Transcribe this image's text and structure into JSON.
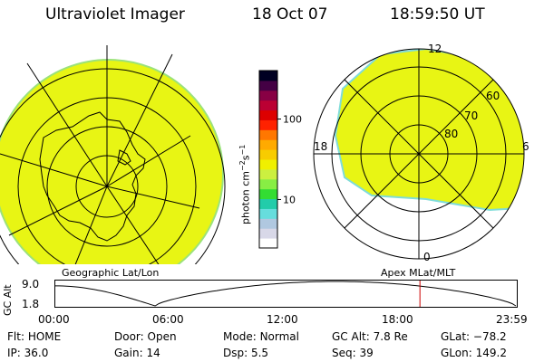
{
  "header": {
    "title": "Ultraviolet Imager",
    "date": "18 Oct 07",
    "time": "18:59:50 UT"
  },
  "colors": {
    "fill": "#e8f514",
    "fill_edge": "#9be27a",
    "gc_marker": "#cc0000"
  },
  "left_panel": {
    "label": "Geographic Lat/Lon"
  },
  "right_panel": {
    "label": "Apex MLat/MLT",
    "mlt_labels": {
      "top": "12",
      "left": "18",
      "right": "6",
      "bottom": "0"
    },
    "lat_labels": [
      "60",
      "70",
      "80"
    ]
  },
  "colorbar": {
    "unit": "photon cm",
    "unit_sup1": "−2",
    "unit_mid": "s",
    "unit_sup2": "−1",
    "ticks": [
      {
        "value": 100,
        "label": "100"
      },
      {
        "value": 10,
        "label": "10"
      }
    ],
    "range": [
      2.5,
      400
    ],
    "colors": [
      "#ffffff",
      "#d8d8e8",
      "#b0c8e0",
      "#66dddd",
      "#22ccaa",
      "#33dd33",
      "#88ee44",
      "#ccf040",
      "#f0f000",
      "#f8cc00",
      "#ffaa00",
      "#ff7700",
      "#ff2200",
      "#dd0000",
      "#bb0033",
      "#880044",
      "#440044",
      "#000022"
    ]
  },
  "gc_alt": {
    "label": "GC Alt",
    "ymax_label": "9.0",
    "ymin_label": "1.8",
    "ylim": [
      1.8,
      9.0
    ],
    "current_time_hours": 19.0,
    "x_ticks": [
      "00:00",
      "06:00",
      "12:00",
      "18:00",
      "23:59"
    ]
  },
  "status": [
    [
      {
        "k": "Flt:",
        "v": "HOME"
      },
      {
        "k": "Door:",
        "v": "Open"
      },
      {
        "k": "Mode:",
        "v": "Normal"
      },
      {
        "k": "GC Alt:",
        "v": "7.8 Re"
      },
      {
        "k": "GLat:",
        "v": "−78.2"
      }
    ],
    [
      {
        "k": "IP:",
        "v": "36.0"
      },
      {
        "k": "Gain:",
        "v": "14"
      },
      {
        "k": "Dsp:",
        "v": "5.5"
      },
      {
        "k": "Seq:",
        "v": "39"
      },
      {
        "k": "GLon:",
        "v": "149.2"
      }
    ]
  ]
}
